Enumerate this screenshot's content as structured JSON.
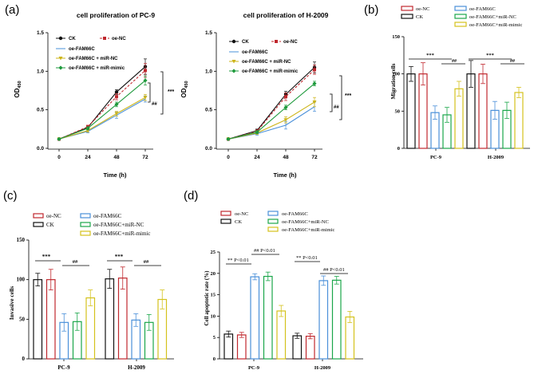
{
  "panel_labels": {
    "a": "(a)",
    "b": "(b)",
    "c": "(c)",
    "d": "(d)"
  },
  "colors": {
    "CK": "#111111",
    "oe-NC": "#c0282e",
    "oe-FAM66C": "#4a90d9",
    "oe-FAM66C + miR-NC": "#1aa64a",
    "oe-FAM66C + miR-mimic": "#d4c21c",
    "line_yellow": "#cdb51a",
    "line_green": "#1e9a3c"
  },
  "chart_data": [
    {
      "id": "a1",
      "type": "line",
      "title": "cell proliferation of PC-9",
      "xlabel": "Time (h)",
      "ylabel": "OD450",
      "ylabel_main": "OD",
      "ylabel_sub": "450",
      "x": [
        0,
        24,
        48,
        72
      ],
      "xticks": [
        "0",
        "24",
        "48",
        "72"
      ],
      "ylim": [
        0,
        1.5
      ],
      "yticks": [
        "0.0",
        "0.5",
        "1.0",
        "1.5"
      ],
      "series": [
        {
          "name": "CK",
          "marker": "circle",
          "dash": false,
          "values": [
            0.12,
            0.27,
            0.73,
            1.06
          ],
          "errors": [
            0.01,
            0.02,
            0.03,
            0.1
          ]
        },
        {
          "name": "oe-NC",
          "marker": "square",
          "dash": true,
          "values": [
            0.12,
            0.28,
            0.67,
            1.01
          ],
          "errors": [
            0.01,
            0.02,
            0.04,
            0.09
          ]
        },
        {
          "name": "oe-FAM66C",
          "marker": "none",
          "dash": false,
          "values": [
            0.12,
            0.22,
            0.43,
            0.64
          ],
          "errors": [
            0.01,
            0.02,
            0.04,
            0.04
          ]
        },
        {
          "name": "oe-FAM66C + miR-NC",
          "marker": "triangle",
          "dash": false,
          "values": [
            0.12,
            0.23,
            0.45,
            0.66
          ],
          "errors": [
            0.01,
            0.02,
            0.03,
            0.04
          ]
        },
        {
          "name": "oe-FAM66C + miR-mimic",
          "marker": "diamond",
          "dash": false,
          "values": [
            0.12,
            0.26,
            0.57,
            0.88
          ],
          "errors": [
            0.01,
            0.02,
            0.03,
            0.06
          ]
        }
      ],
      "annotations": [
        "##",
        "***"
      ]
    },
    {
      "id": "a2",
      "type": "line",
      "title": "cell proliferation of H-2009",
      "xlabel": "Time (h)",
      "ylabel": "OD450",
      "ylabel_main": "OD",
      "ylabel_sub": "450",
      "x": [
        0,
        24,
        48,
        72
      ],
      "xticks": [
        "0",
        "24",
        "48",
        "72"
      ],
      "ylim": [
        0,
        1.5
      ],
      "yticks": [
        "0.0",
        "0.5",
        "1.0",
        "1.5"
      ],
      "series": [
        {
          "name": "CK",
          "marker": "circle",
          "dash": false,
          "values": [
            0.12,
            0.23,
            0.7,
            1.05
          ],
          "errors": [
            0.01,
            0.02,
            0.04,
            0.07
          ]
        },
        {
          "name": "oe-NC",
          "marker": "square",
          "dash": true,
          "values": [
            0.12,
            0.22,
            0.67,
            1.02
          ],
          "errors": [
            0.01,
            0.02,
            0.05,
            0.06
          ]
        },
        {
          "name": "oe-FAM66C",
          "marker": "none",
          "dash": false,
          "values": [
            0.12,
            0.19,
            0.3,
            0.54
          ],
          "errors": [
            0.01,
            0.02,
            0.05,
            0.06
          ]
        },
        {
          "name": "oe-FAM66C + miR-NC",
          "marker": "triangle",
          "dash": false,
          "values": [
            0.12,
            0.2,
            0.37,
            0.6
          ],
          "errors": [
            0.01,
            0.02,
            0.04,
            0.06
          ]
        },
        {
          "name": "oe-FAM66C + miR-mimic",
          "marker": "diamond",
          "dash": false,
          "values": [
            0.12,
            0.21,
            0.53,
            0.84
          ],
          "errors": [
            0.01,
            0.02,
            0.03,
            0.03
          ]
        }
      ],
      "annotations": [
        "##",
        "***"
      ]
    },
    {
      "id": "b",
      "type": "bar",
      "title": "",
      "ylabel": "Migration cells",
      "ylim": [
        0,
        150
      ],
      "yticks": [
        "0",
        "50",
        "100",
        "150"
      ],
      "categories": [
        "PC-9",
        "H-2009"
      ],
      "legend": [
        {
          "name": "oe-NC",
          "label": "oe-NC"
        },
        {
          "name": "oe-FAM66C",
          "label": "oe-FAM66C"
        },
        {
          "name": "CK",
          "label": "CK"
        },
        {
          "name": "oe-FAM66C + miR-NC",
          "label": "oe-FAM66C+miR-NC"
        },
        {
          "name": "oe-FAM66C + miR-mimic",
          "label": "oe-FAM66C+miR-mimic"
        }
      ],
      "series": [
        {
          "name": "CK",
          "values": [
            100,
            100
          ],
          "errors": [
            10,
            18
          ]
        },
        {
          "name": "oe-NC",
          "values": [
            100,
            100
          ],
          "errors": [
            15,
            13
          ]
        },
        {
          "name": "oe-FAM66C",
          "values": [
            48,
            51
          ],
          "errors": [
            9,
            12
          ]
        },
        {
          "name": "oe-FAM66C + miR-NC",
          "values": [
            45,
            51
          ],
          "errors": [
            10,
            11
          ]
        },
        {
          "name": "oe-FAM66C + miR-mimic",
          "values": [
            80,
            75
          ],
          "errors": [
            10,
            7
          ]
        }
      ],
      "annotations": [
        "***",
        "##",
        "***",
        "##"
      ]
    },
    {
      "id": "c",
      "type": "bar",
      "title": "",
      "ylabel": "Invasive cells",
      "ylim": [
        0,
        150
      ],
      "yticks": [
        "0",
        "50",
        "100",
        "150"
      ],
      "categories": [
        "PC-9",
        "H-2009"
      ],
      "legend": [
        {
          "name": "oe-NC",
          "label": "oe-NC"
        },
        {
          "name": "oe-FAM66C",
          "label": "oe-FAM66C"
        },
        {
          "name": "CK",
          "label": "CK"
        },
        {
          "name": "oe-FAM66C + miR-NC",
          "label": "oe-FAM66C+miR-NC"
        },
        {
          "name": "oe-FAM66C + miR-mimic",
          "label": "oe-FAM66C+miR-mimic"
        }
      ],
      "series": [
        {
          "name": "CK",
          "values": [
            100,
            101
          ],
          "errors": [
            8,
            12
          ]
        },
        {
          "name": "oe-NC",
          "values": [
            100,
            102
          ],
          "errors": [
            13,
            14
          ]
        },
        {
          "name": "oe-FAM66C",
          "values": [
            46,
            49
          ],
          "errors": [
            11,
            8
          ]
        },
        {
          "name": "oe-FAM66C + miR-NC",
          "values": [
            47,
            46
          ],
          "errors": [
            11,
            10
          ]
        },
        {
          "name": "oe-FAM66C + miR-mimic",
          "values": [
            77,
            75
          ],
          "errors": [
            10,
            12
          ]
        }
      ],
      "annotations": [
        "***",
        "##",
        "***",
        "##"
      ]
    },
    {
      "id": "d",
      "type": "bar",
      "title": "",
      "ylabel": "Cell apoptotic rate (%)",
      "ylim": [
        0,
        25
      ],
      "yticks": [
        "0",
        "5",
        "10",
        "15",
        "20",
        "25"
      ],
      "categories": [
        "PC-9",
        "H-2009"
      ],
      "legend": [
        {
          "name": "oe-NC",
          "label": "oe-NC"
        },
        {
          "name": "oe-FAM66C",
          "label": "oe-FAM66C"
        },
        {
          "name": "CK",
          "label": "CK"
        },
        {
          "name": "oe-FAM66C + miR-NC",
          "label": "oe-FAM66C+miR-NC"
        },
        {
          "name": "oe-FAM66C + miR-mimic",
          "label": "oe-FAM66C+miR-mimic"
        }
      ],
      "series": [
        {
          "name": "CK",
          "values": [
            5.8,
            5.4
          ],
          "errors": [
            0.7,
            0.6
          ]
        },
        {
          "name": "oe-NC",
          "values": [
            5.6,
            5.3
          ],
          "errors": [
            0.6,
            0.6
          ]
        },
        {
          "name": "oe-FAM66C",
          "values": [
            19.2,
            18.3
          ],
          "errors": [
            0.7,
            1.1
          ]
        },
        {
          "name": "oe-FAM66C + miR-NC",
          "values": [
            19.3,
            18.4
          ],
          "errors": [
            1.0,
            0.9
          ]
        },
        {
          "name": "oe-FAM66C + miR-mimic",
          "values": [
            11.2,
            9.8
          ],
          "errors": [
            1.3,
            1.3
          ]
        }
      ],
      "annotations": [
        "** P<0.01",
        "## P<0.01",
        "** P<0.01",
        "## P<0.01"
      ]
    }
  ]
}
